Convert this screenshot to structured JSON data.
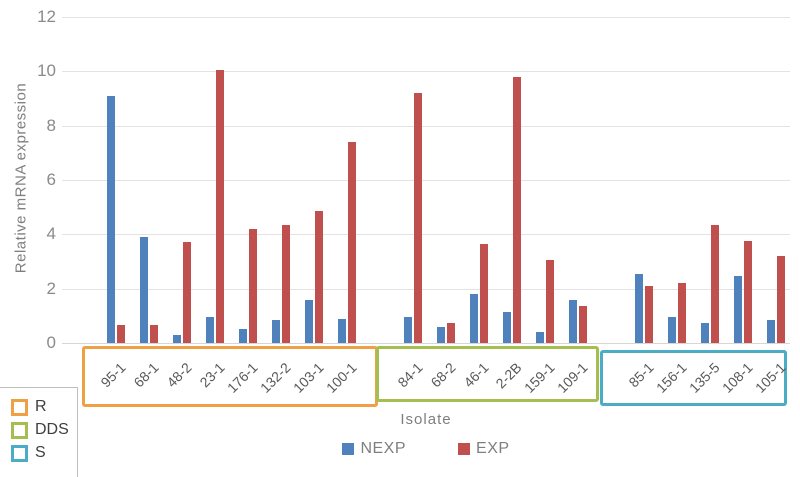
{
  "chart_data": {
    "type": "bar",
    "title": "",
    "xlabel": "Isolate",
    "ylabel": "Relative mRNA expression",
    "ylim": [
      0,
      12
    ],
    "yticks": [
      0,
      2,
      4,
      6,
      8,
      10,
      12
    ],
    "grid": true,
    "legend_position": "bottom",
    "series": [
      {
        "name": "NEXP",
        "color": "#4F81BD"
      },
      {
        "name": "EXP",
        "color": "#C0504D"
      }
    ],
    "groups": [
      {
        "label": "R",
        "color": "#EFA044",
        "categories": [
          "95-1",
          "68-1",
          "48-2",
          "23-1",
          "176-1",
          "132-2",
          "103-1",
          "100-1"
        ],
        "NEXP": [
          9.1,
          3.9,
          0.3,
          0.95,
          0.5,
          0.85,
          1.6,
          0.9
        ],
        "EXP": [
          0.65,
          0.65,
          3.7,
          10.05,
          4.2,
          4.35,
          4.85,
          7.4
        ]
      },
      {
        "label": "DDS",
        "color": "#A4BF4F",
        "categories": [
          "84-1",
          "68-2",
          "46-1",
          "2-2B",
          "159-1",
          "109-1"
        ],
        "NEXP": [
          0.95,
          0.6,
          1.8,
          1.15,
          0.4,
          1.6
        ],
        "EXP": [
          9.2,
          0.75,
          3.65,
          9.8,
          3.05,
          1.35
        ]
      },
      {
        "label": "S",
        "color": "#4BACC6",
        "categories": [
          "85-1",
          "156-1",
          "135-5",
          "108-1",
          "105-1"
        ],
        "NEXP": [
          2.55,
          0.95,
          0.75,
          2.45,
          0.85
        ],
        "EXP": [
          2.1,
          2.2,
          4.35,
          3.75,
          3.2
        ]
      }
    ]
  },
  "side_legend": {
    "items": [
      {
        "label": "R",
        "color": "#EFA044"
      },
      {
        "label": "DDS",
        "color": "#A4BF4F"
      },
      {
        "label": "S",
        "color": "#4BACC6"
      }
    ]
  }
}
